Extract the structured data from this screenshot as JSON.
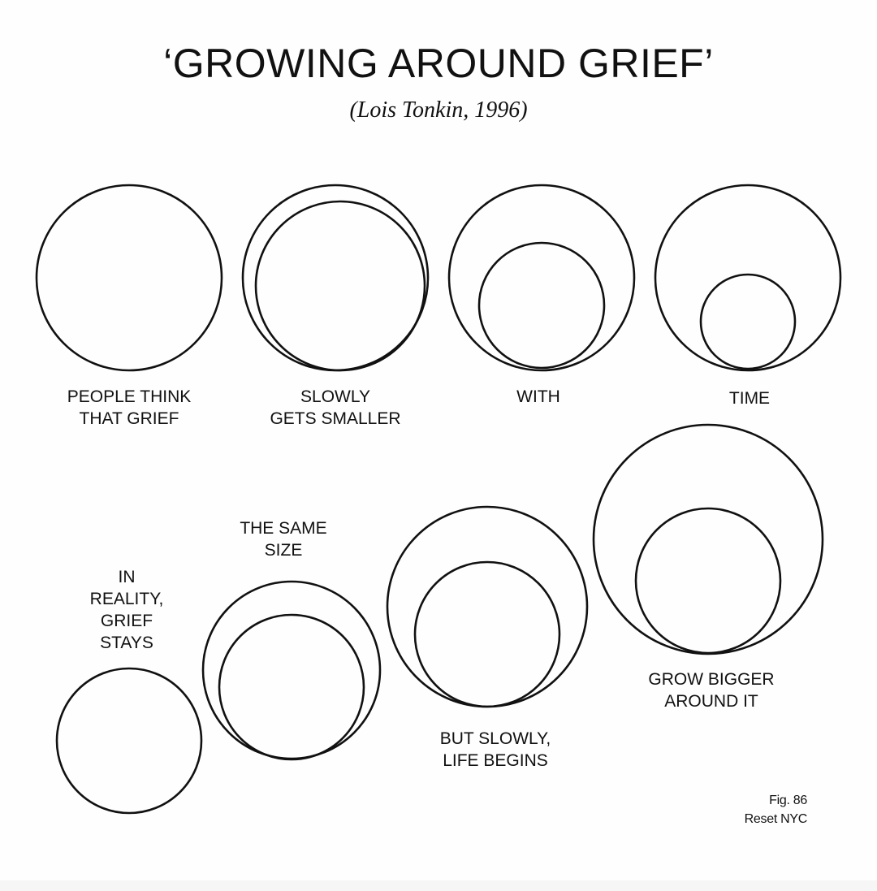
{
  "header": {
    "title": "‘GROWING AROUND GRIEF’",
    "subtitle": "(Lois Tonkin, 1996)"
  },
  "top_row": {
    "labels": [
      [
        "PEOPLE THINK",
        "THAT GRIEF"
      ],
      [
        "SLOWLY",
        "GETS SMALLER"
      ],
      [
        "WITH"
      ],
      [
        "TIME"
      ]
    ]
  },
  "bottom_row": {
    "labels": [
      [
        "IN",
        "REALITY,",
        "GRIEF",
        "STAYS"
      ],
      [
        "THE SAME",
        "SIZE"
      ],
      [
        "BUT SLOWLY,",
        "LIFE BEGINS"
      ],
      [
        "GROW BIGGER",
        "AROUND IT"
      ]
    ]
  },
  "footer": {
    "figure": "Fig. 86",
    "credit": "Reset NYC"
  },
  "colors": {
    "stroke": "#111111",
    "background": "#fefefe"
  }
}
